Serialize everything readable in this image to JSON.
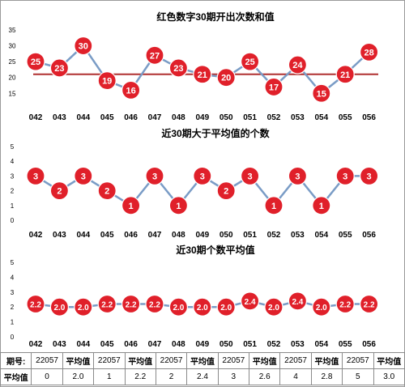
{
  "chart_data": [
    {
      "type": "line",
      "title": "红色数字30期开出次数和值",
      "categories": [
        "042",
        "043",
        "044",
        "045",
        "046",
        "047",
        "048",
        "049",
        "050",
        "051",
        "052",
        "053",
        "054",
        "055",
        "056"
      ],
      "series": [
        {
          "values": [
            25,
            23,
            30,
            19,
            16,
            27,
            23,
            21,
            20,
            25,
            17,
            24,
            15,
            21,
            28
          ]
        }
      ],
      "ref_line": 21,
      "yticks": [
        "15",
        "20",
        "25",
        "30",
        "35"
      ],
      "ylim": [
        12,
        35
      ],
      "colors": {
        "line": "#7a9cc6",
        "marker": "#e0202a",
        "ref_line": "#b03030"
      },
      "grid": false
    },
    {
      "type": "line",
      "title": "近30期大于平均值的个数",
      "categories": [
        "042",
        "043",
        "044",
        "045",
        "046",
        "047",
        "048",
        "049",
        "050",
        "051",
        "052",
        "053",
        "054",
        "055",
        "056"
      ],
      "series": [
        {
          "values": [
            3,
            2,
            3,
            2,
            1,
            3,
            1,
            3,
            2,
            3,
            1,
            3,
            1,
            3,
            3
          ]
        }
      ],
      "yticks": [
        "0",
        "1",
        "2",
        "3",
        "4",
        "5"
      ],
      "ylim": [
        0,
        5
      ],
      "colors": {
        "line": "#7a9cc6",
        "marker": "#e0202a"
      },
      "grid": false
    },
    {
      "type": "line",
      "title": "近30期个数平均值",
      "categories": [
        "042",
        "043",
        "044",
        "045",
        "046",
        "047",
        "048",
        "049",
        "050",
        "051",
        "052",
        "053",
        "054",
        "055",
        "056"
      ],
      "series": [
        {
          "values": [
            "2.2",
            "2.0",
            "2.0",
            "2.2",
            "2.2",
            "2.2",
            "2.0",
            "2.0",
            "2.0",
            "2.4",
            "2.0",
            "2.4",
            "2.0",
            "2.2",
            "2.2"
          ]
        }
      ],
      "yticks": [
        "0",
        "1",
        "2",
        "3",
        "4",
        "5"
      ],
      "ylim": [
        0,
        5
      ],
      "colors": {
        "line": "#7a9cc6",
        "marker": "#e0202a"
      },
      "grid": false
    }
  ],
  "table": {
    "header": [
      "期号:",
      "22057",
      "平均值",
      "22057",
      "平均值",
      "22057",
      "平均值",
      "22057",
      "平均值",
      "22057",
      "平均值",
      "22057",
      "平均值"
    ],
    "row": [
      "平均值",
      "0",
      "2.0",
      "1",
      "2.2",
      "2",
      "2.4",
      "3",
      "2.6",
      "4",
      "2.8",
      "5",
      "3.0"
    ]
  }
}
